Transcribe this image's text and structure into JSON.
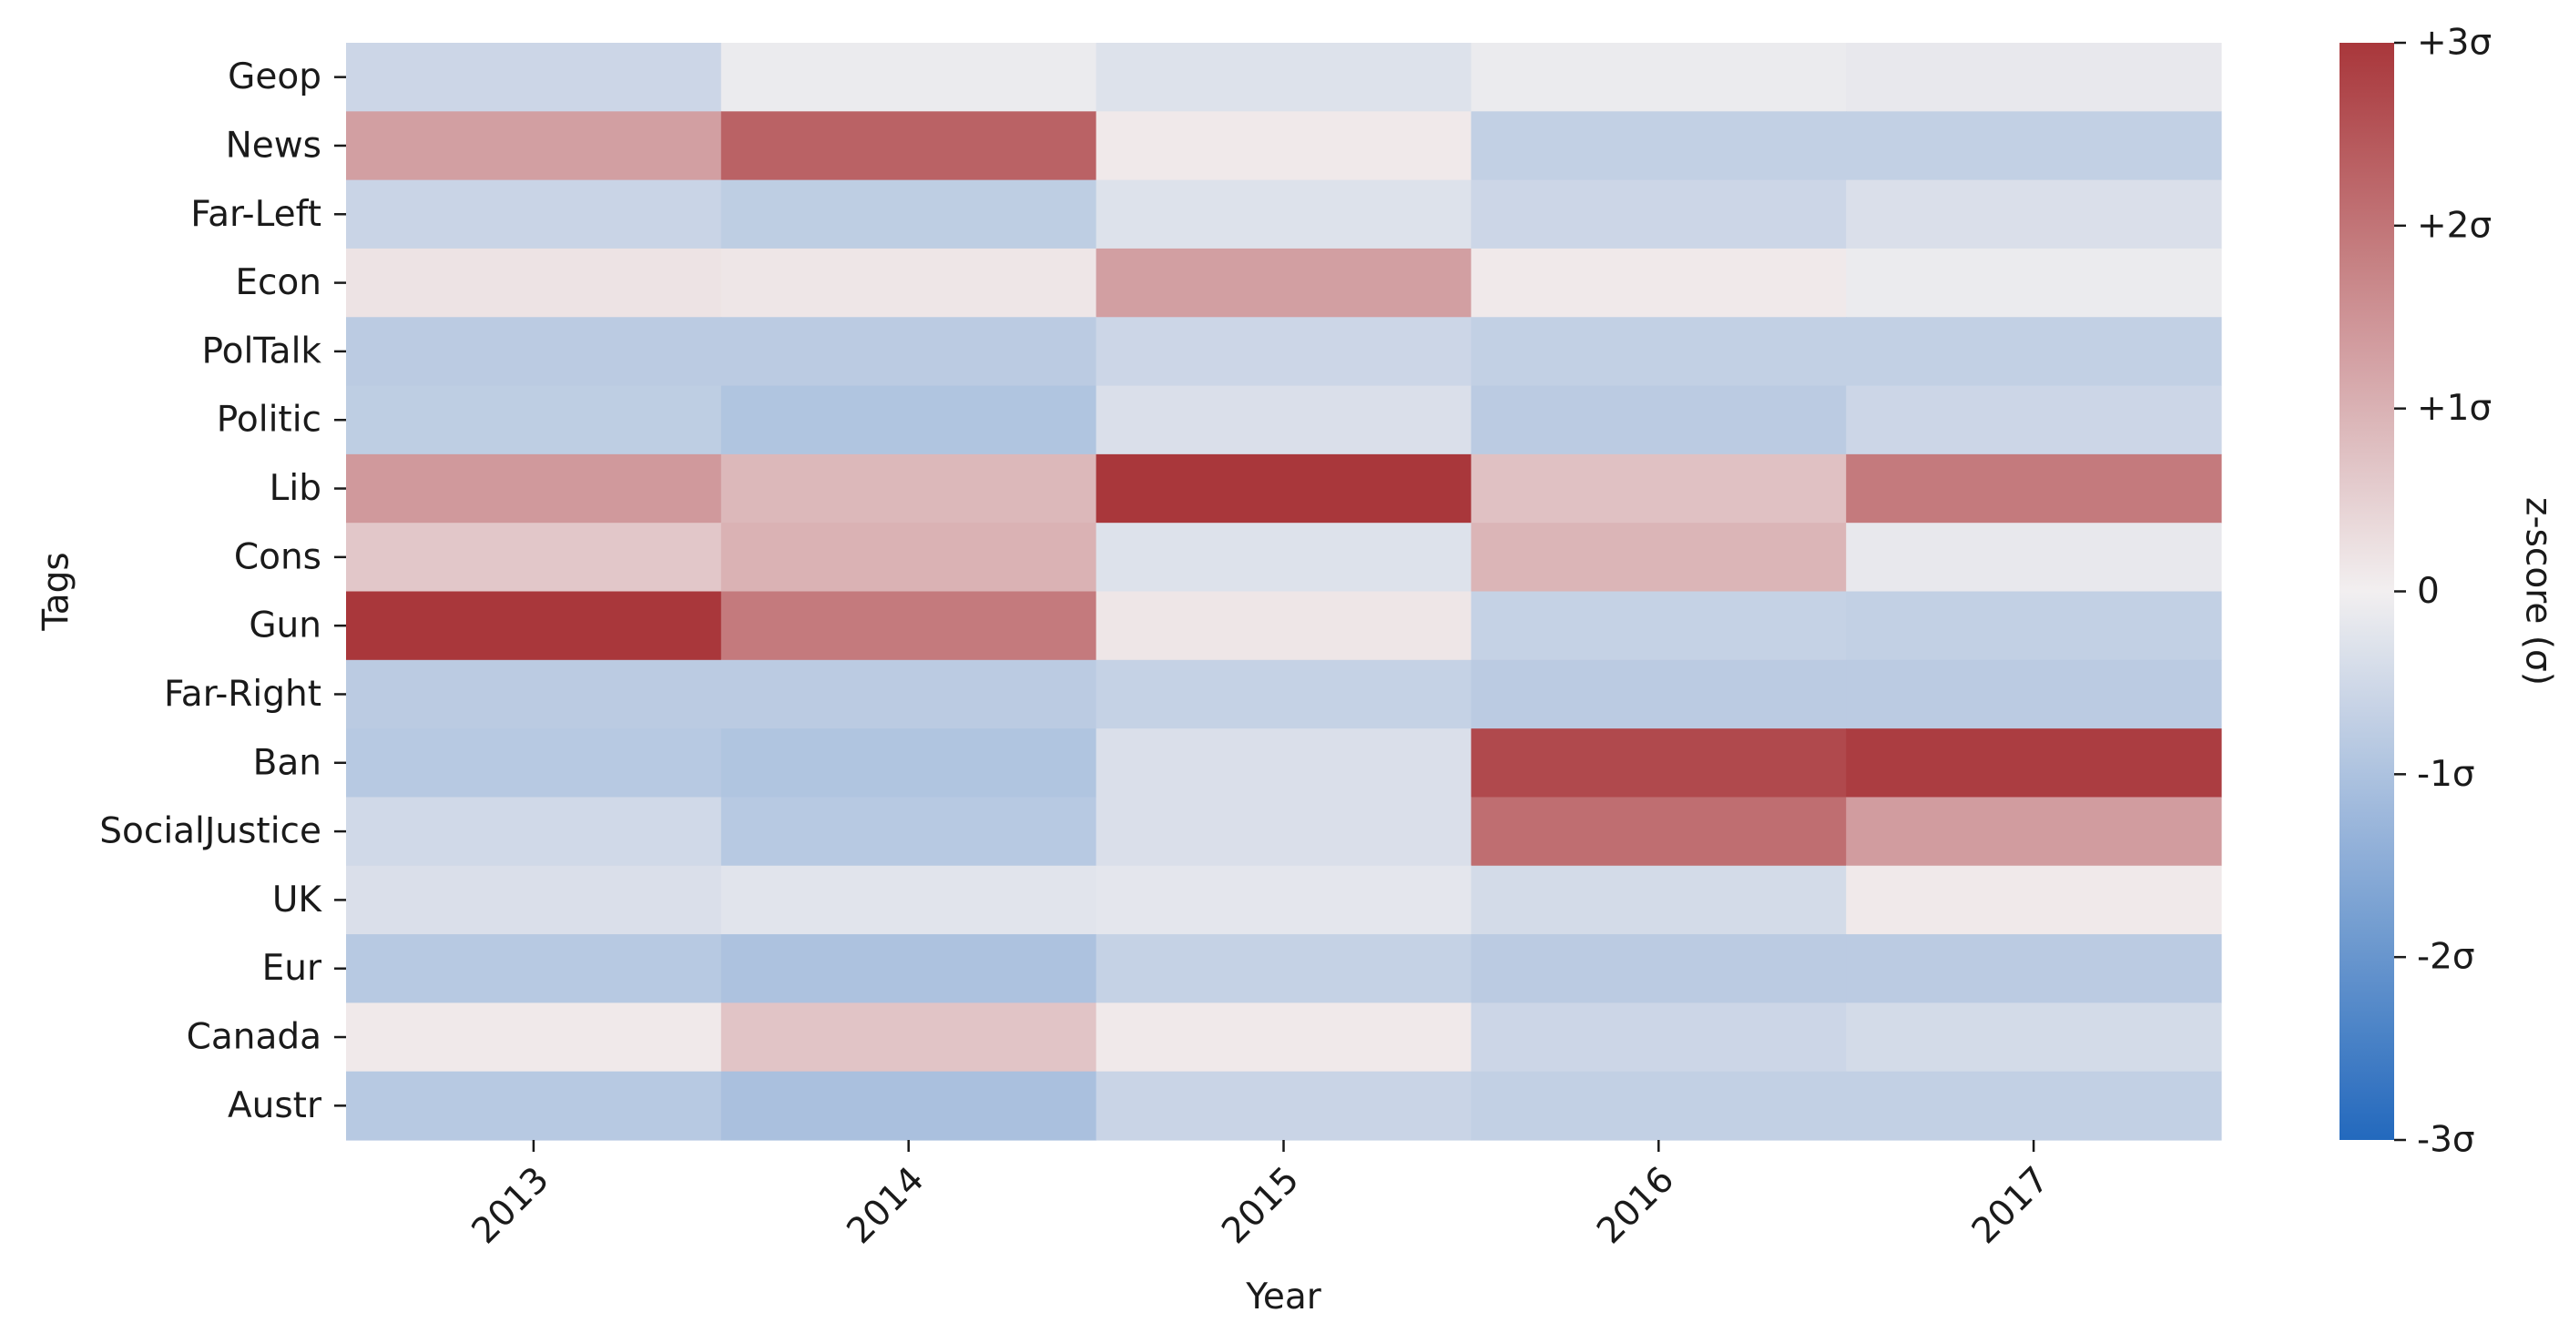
{
  "chart_data": {
    "type": "heatmap",
    "title": "",
    "xlabel": "Year",
    "ylabel": "Tags",
    "x_categories": [
      "2013",
      "2014",
      "2015",
      "2016",
      "2017"
    ],
    "y_categories": [
      "Geop",
      "News",
      "Far-Left",
      "Econ",
      "PolTalk",
      "Politic",
      "Lib",
      "Cons",
      "Gun",
      "Far-Right",
      "Ban",
      "SocialJustice",
      "UK",
      "Eur",
      "Canada",
      "Austr"
    ],
    "values": [
      [
        -0.55,
        -0.1,
        -0.3,
        -0.1,
        -0.15
      ],
      [
        1.3,
        2.3,
        0.1,
        -0.7,
        -0.7
      ],
      [
        -0.6,
        -0.75,
        -0.3,
        -0.55,
        -0.35
      ],
      [
        0.2,
        0.15,
        1.3,
        0.1,
        -0.1
      ],
      [
        -0.8,
        -0.8,
        -0.55,
        -0.7,
        -0.7
      ],
      [
        -0.75,
        -0.95,
        -0.35,
        -0.8,
        -0.55
      ],
      [
        1.4,
        0.9,
        3.0,
        0.75,
        1.9
      ],
      [
        0.65,
        1.0,
        -0.3,
        0.95,
        -0.15
      ],
      [
        3.0,
        1.9,
        0.15,
        -0.65,
        -0.7
      ],
      [
        -0.8,
        -0.8,
        -0.65,
        -0.8,
        -0.8
      ],
      [
        -0.85,
        -0.95,
        -0.35,
        2.7,
        2.9
      ],
      [
        -0.5,
        -0.85,
        -0.35,
        2.1,
        1.35
      ],
      [
        -0.35,
        -0.25,
        -0.2,
        -0.45,
        0.1
      ],
      [
        -0.85,
        -1.0,
        -0.65,
        -0.8,
        -0.8
      ],
      [
        0.1,
        0.7,
        0.1,
        -0.55,
        -0.45
      ],
      [
        -0.85,
        -1.05,
        -0.6,
        -0.7,
        -0.7
      ]
    ],
    "colormap": "vlag",
    "vmin": -3,
    "vmax": 3,
    "colorbar": {
      "label": "z-score (σ)",
      "ticks": [
        3,
        2,
        1,
        0,
        -1,
        -2,
        -3
      ],
      "tick_labels": [
        "+3σ",
        "+2σ",
        "+1σ",
        "0",
        "-1σ",
        "-2σ",
        "-3σ"
      ],
      "placement": "right"
    },
    "colors": {
      "low": "#2369bd",
      "mid": "#f2eff0",
      "high": "#a9373b"
    }
  }
}
